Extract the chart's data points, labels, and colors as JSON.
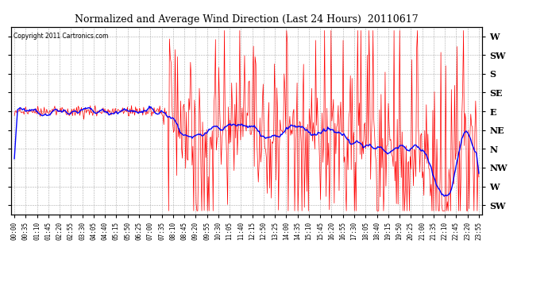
{
  "title": "Normalized and Average Wind Direction (Last 24 Hours)  20110617",
  "copyright": "Copyright 2011 Cartronics.com",
  "background_color": "#ffffff",
  "plot_bg_color": "#ffffff",
  "grid_color": "#aaaaaa",
  "red_line_color": "#ff0000",
  "blue_line_color": "#0000ff",
  "ytick_labels": [
    "W",
    "SW",
    "S",
    "SE",
    "E",
    "NE",
    "N",
    "NW",
    "W",
    "SW"
  ],
  "ytick_values": [
    9,
    8,
    7,
    6,
    5,
    4,
    3,
    2,
    1,
    0
  ],
  "ylim": [
    -0.5,
    9.5
  ],
  "xtick_labels": [
    "00:00",
    "00:35",
    "01:10",
    "01:45",
    "02:20",
    "02:55",
    "03:30",
    "04:05",
    "04:40",
    "05:15",
    "05:50",
    "06:25",
    "07:00",
    "07:35",
    "08:10",
    "08:45",
    "09:20",
    "09:55",
    "10:30",
    "11:05",
    "11:40",
    "12:15",
    "12:50",
    "13:25",
    "14:00",
    "14:35",
    "15:10",
    "15:45",
    "16:20",
    "16:55",
    "17:30",
    "18:05",
    "18:40",
    "19:15",
    "19:50",
    "20:25",
    "21:00",
    "21:35",
    "22:10",
    "22:45",
    "23:20",
    "23:55"
  ]
}
